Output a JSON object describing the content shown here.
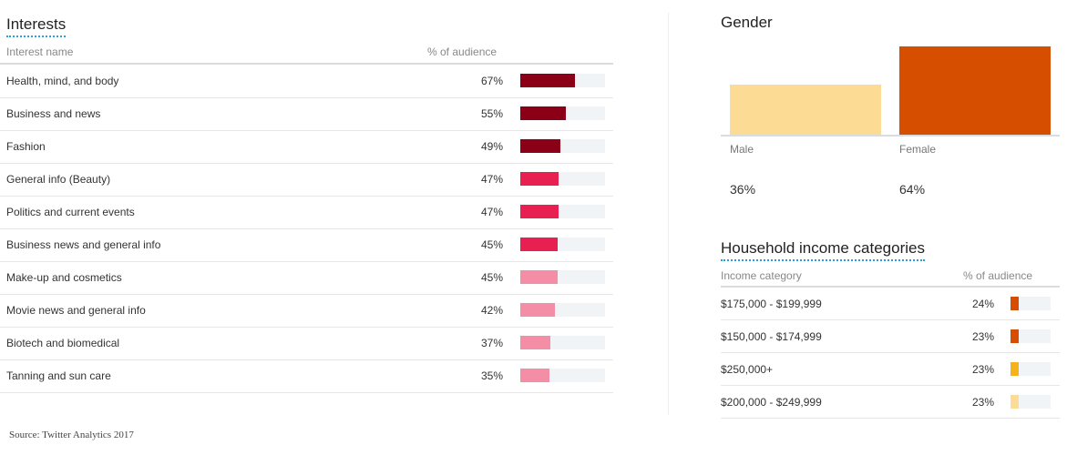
{
  "interests": {
    "title": "Interests",
    "col_name": "Interest name",
    "col_pct": "% of audience",
    "rows": [
      {
        "name": "Health, mind, and body",
        "pct_label": "67%",
        "value": 67,
        "color": "#8b0016"
      },
      {
        "name": "Business and news",
        "pct_label": "55%",
        "value": 55,
        "color": "#8b0016"
      },
      {
        "name": "Fashion",
        "pct_label": "49%",
        "value": 49,
        "color": "#8b0016"
      },
      {
        "name": "General info (Beauty)",
        "pct_label": "47%",
        "value": 47,
        "color": "#e81f51"
      },
      {
        "name": "Politics and current events",
        "pct_label": "47%",
        "value": 47,
        "color": "#e81f51"
      },
      {
        "name": "Business news and general info",
        "pct_label": "45%",
        "value": 45,
        "color": "#e81f51"
      },
      {
        "name": "Make-up and cosmetics",
        "pct_label": "45%",
        "value": 45,
        "color": "#f48ea6"
      },
      {
        "name": "Movie news and general info",
        "pct_label": "42%",
        "value": 42,
        "color": "#f48ea6"
      },
      {
        "name": "Biotech and biomedical",
        "pct_label": "37%",
        "value": 37,
        "color": "#f48ea6"
      },
      {
        "name": "Tanning and sun care",
        "pct_label": "35%",
        "value": 35,
        "color": "#f48ea6"
      }
    ]
  },
  "gender": {
    "title": "Gender",
    "bars": [
      {
        "label": "Male",
        "pct_label": "36%",
        "value": 36,
        "color": "#fcdc94"
      },
      {
        "label": "Female",
        "pct_label": "64%",
        "value": 64,
        "color": "#d64f00"
      }
    ]
  },
  "income": {
    "title": "Household income categories",
    "col_name": "Income category",
    "col_pct": "% of audience",
    "rows": [
      {
        "name": "$175,000 - $199,999",
        "pct_label": "24%",
        "value": 24,
        "color": "#d64f00"
      },
      {
        "name": "$150,000 - $174,999",
        "pct_label": "23%",
        "value": 23,
        "color": "#d64f00"
      },
      {
        "name": "$250,000+",
        "pct_label": "23%",
        "value": 23,
        "color": "#f6b21a"
      },
      {
        "name": "$200,000 - $249,999",
        "pct_label": "23%",
        "value": 23,
        "color": "#fcdc94"
      }
    ]
  },
  "source": "Source: Twitter Analytics 2017"
}
